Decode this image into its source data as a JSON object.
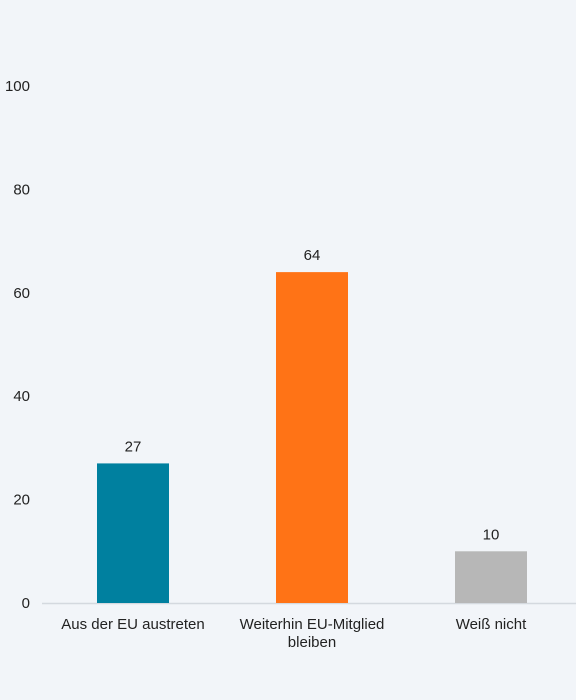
{
  "chart_data": {
    "type": "bar",
    "title": "",
    "xlabel": "",
    "ylabel": "",
    "ylim": [
      0,
      100
    ],
    "yticks": [
      0,
      20,
      40,
      60,
      80,
      100
    ],
    "grid": false,
    "legend": "none",
    "categories": [
      [
        "Aus der EU austreten"
      ],
      [
        "Weiterhin EU-Mitglied",
        "bleiben"
      ],
      [
        "Weiß nicht"
      ]
    ],
    "values": [
      27,
      64,
      10
    ],
    "value_labels": [
      "27",
      "64",
      "10"
    ],
    "colors": [
      "#00809f",
      "#ff7316",
      "#b7b7b7"
    ],
    "axis_color": "#d4d9df"
  }
}
